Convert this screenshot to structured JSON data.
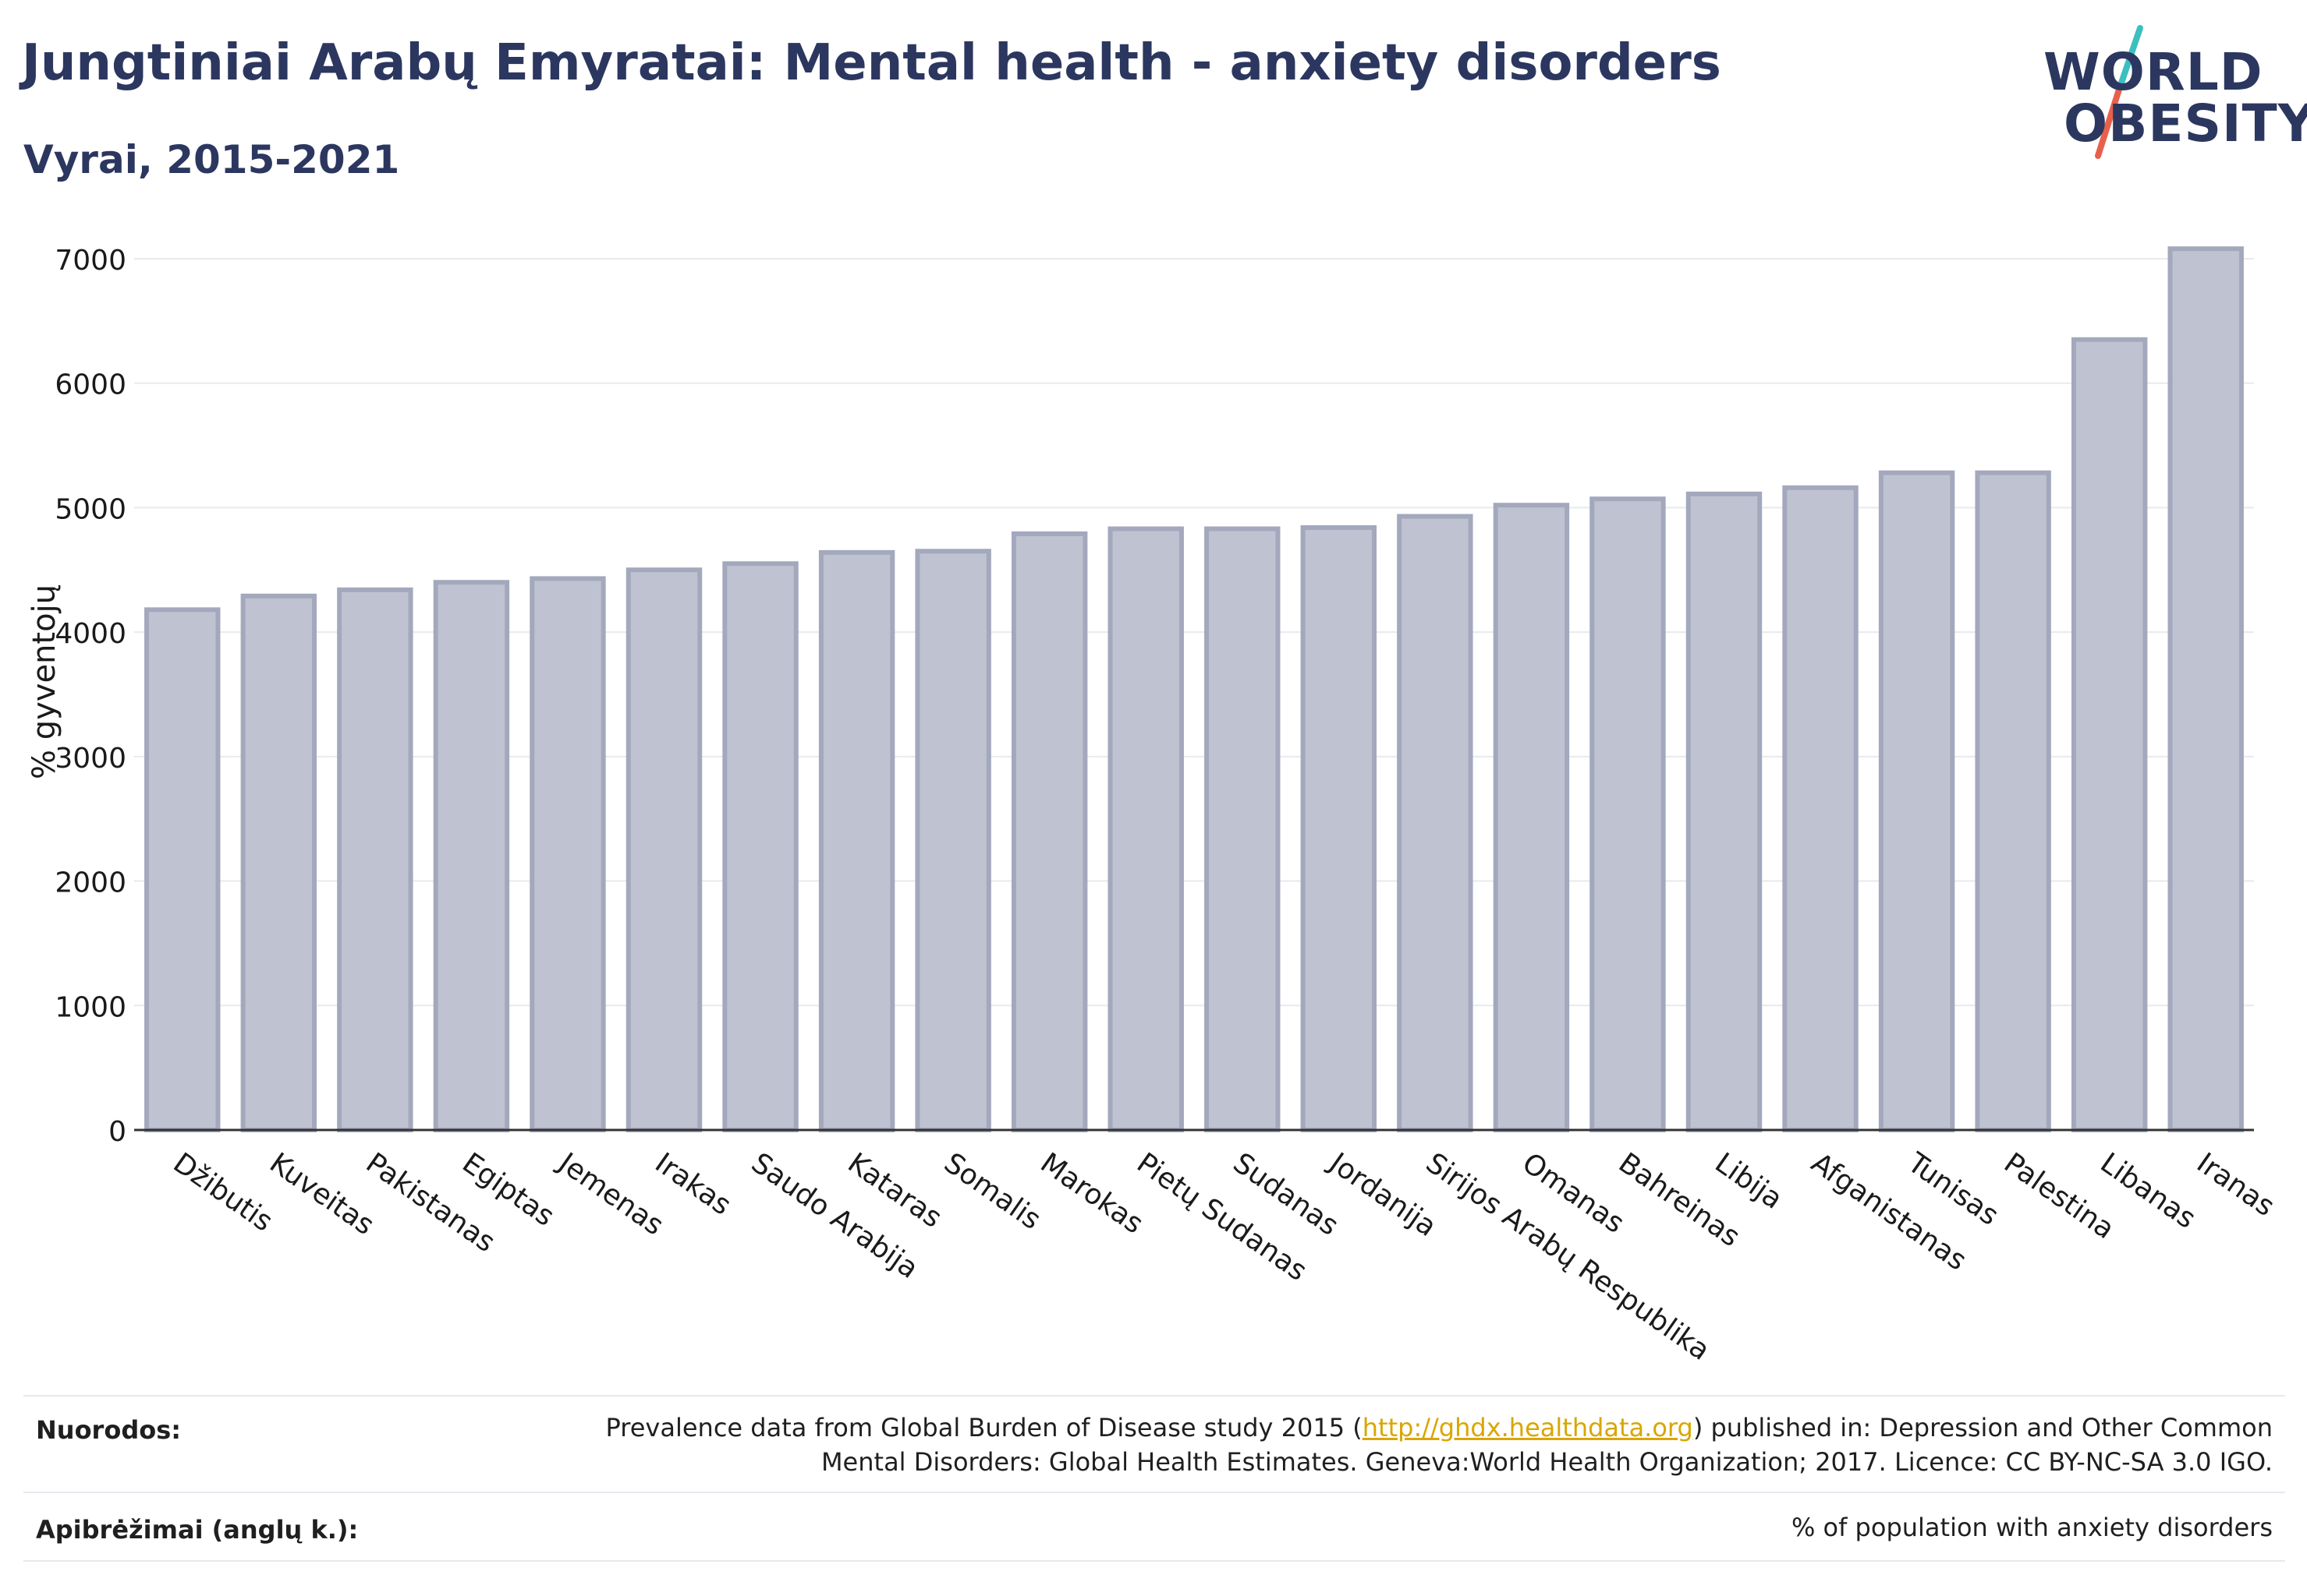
{
  "header": {
    "title": "Jungtiniai Arabų Emyratai: Mental health - anxiety disorders",
    "subtitle": "Vyrai, 2015-2021"
  },
  "logo": {
    "line1": "WORLD",
    "line2": "OBESITY",
    "accent_teal": "#3bbfbf",
    "accent_red": "#e8604c"
  },
  "colors": {
    "bar_fill": "#bfc3d1",
    "bar_stroke": "#a3a8bd",
    "text": "#2c3760",
    "grid": "#e8eaee"
  },
  "chart_data": {
    "type": "bar",
    "categories": [
      "Džibutis",
      "Kuveitas",
      "Pakistanas",
      "Egiptas",
      "Jemenas",
      "Irakas",
      "Saudo Arabija",
      "Kataras",
      "Somalis",
      "Marokas",
      "Pietų Sudanas",
      "Sudanas",
      "Jordanija",
      "Sirijos Arabų Respublika",
      "Omanas",
      "Bahreinas",
      "Libija",
      "Afganistanas",
      "Tunisas",
      "Palestina",
      "Libanas",
      "Iranas"
    ],
    "values": [
      4180,
      4290,
      4340,
      4400,
      4430,
      4500,
      4550,
      4640,
      4650,
      4790,
      4830,
      4830,
      4840,
      4930,
      5020,
      5070,
      5110,
      5160,
      5280,
      5280,
      6350,
      7080
    ],
    "ylabel": "% gyventojų",
    "xlabel": "",
    "ylim": [
      0,
      7200
    ],
    "yticks": [
      0,
      1000,
      2000,
      3000,
      4000,
      5000,
      6000,
      7000
    ],
    "grid": true,
    "legend": "none"
  },
  "footer": {
    "references_label": "Nuorodos:",
    "references_line1_before": "Prevalence data from Global Burden of Disease study 2015 (",
    "references_link": "http://ghdx.healthdata.org",
    "references_line1_after": ") published in: Depression and Other Common",
    "references_line2": "Mental Disorders: Global Health Estimates. Geneva:World Health Organization; 2017. Licence: CC BY-NC-SA 3.0 IGO.",
    "definitions_label": "Apibrėžimai (anglų k.):",
    "definitions_text": "% of population with anxiety disorders"
  }
}
